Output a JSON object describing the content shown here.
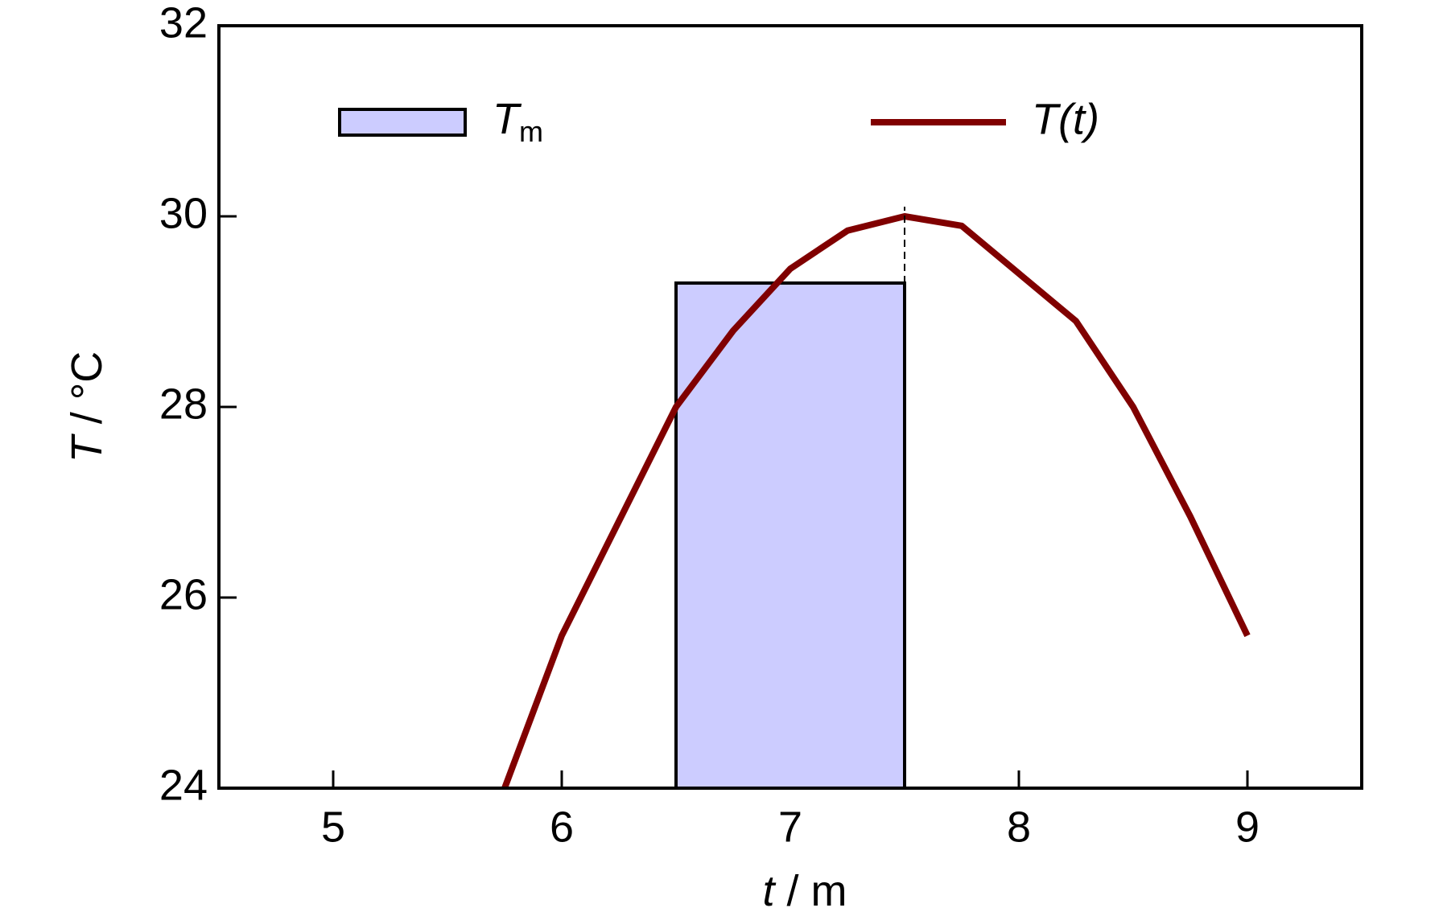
{
  "chart_data": {
    "type": "combo",
    "x_label": "t / m",
    "y_label": "T / °C",
    "xlim": [
      4.5,
      9.5
    ],
    "xticks": [
      5,
      6,
      7,
      8,
      9
    ],
    "ylim": [
      24,
      32
    ],
    "yticks": [
      24,
      26,
      28,
      30,
      32
    ],
    "legend": "top",
    "series": [
      {
        "name": "Tm",
        "type": "bar",
        "color": "#ccccff",
        "bins": [
          6.5,
          7.5
        ],
        "values": [
          29.3
        ]
      },
      {
        "name": "T(t)",
        "type": "line",
        "color": "#800000",
        "x": [
          5.75,
          6.0,
          6.25,
          6.5,
          6.75,
          7.0,
          7.25,
          7.5,
          7.75,
          8.0,
          8.25,
          8.5,
          8.75,
          9.0
        ],
        "values": [
          24.0,
          25.6,
          26.8,
          28.0,
          28.8,
          29.45,
          29.85,
          30.0,
          29.9,
          29.4,
          28.9,
          28.0,
          26.85,
          25.6
        ]
      }
    ]
  }
}
